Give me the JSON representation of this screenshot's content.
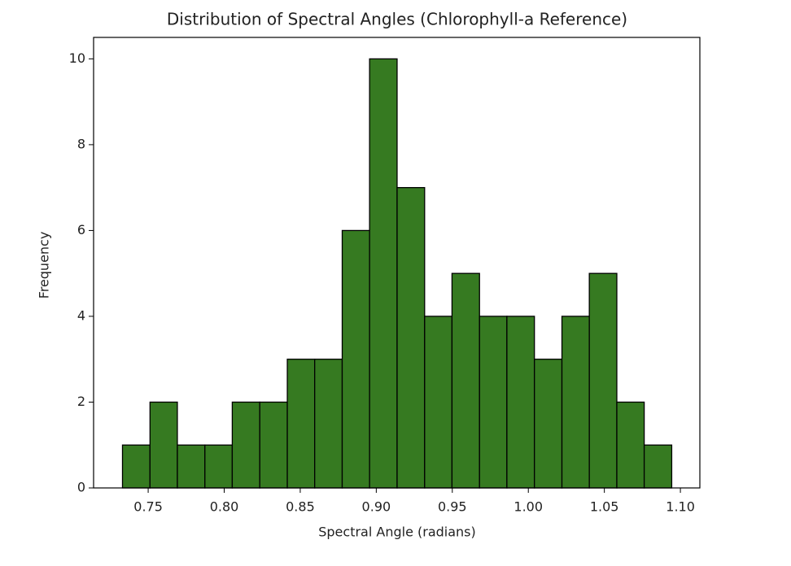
{
  "chart_data": {
    "type": "histogram",
    "title": "Distribution of Spectral Angles (Chlorophyll-a Reference)",
    "x_label": "Spectral Angle (radians)",
    "y_label": "Frequency",
    "bins": [
      0.7331,
      0.7512,
      0.7692,
      0.7873,
      0.8053,
      0.8234,
      0.8415,
      0.8595,
      0.8776,
      0.8956,
      0.9137,
      0.9318,
      0.9498,
      0.9679,
      0.9859,
      1.004,
      1.0221,
      1.0401,
      1.0582,
      1.0762,
      1.0943
    ],
    "values": [
      1,
      2,
      1,
      1,
      2,
      2,
      3,
      3,
      6,
      10,
      7,
      4,
      5,
      4,
      4,
      3,
      4,
      5,
      2,
      1
    ],
    "color": "#367a21",
    "edgecolor": "#000000",
    "xlim": [
      0.7141,
      1.1128
    ],
    "ylim": [
      0,
      10.5
    ],
    "xticks": [
      0.75,
      {
        "value": 0.8,
        "label": "0.80"
      },
      0.85,
      {
        "value": 0.9,
        "label": "0.90"
      },
      0.95,
      {
        "value": 1.0,
        "label": "1.00"
      },
      1.05,
      {
        "value": 1.1,
        "label": "1.10"
      }
    ],
    "yticks": [
      0,
      2,
      4,
      6,
      8,
      10
    ]
  }
}
